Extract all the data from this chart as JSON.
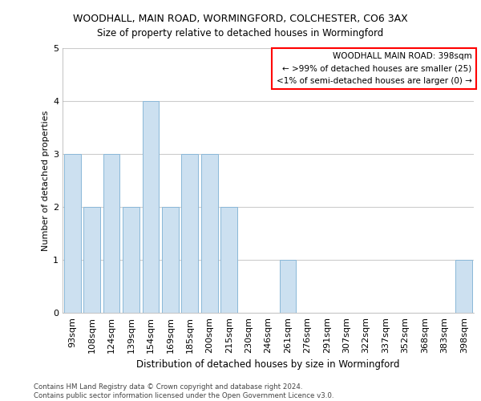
{
  "title1": "WOODHALL, MAIN ROAD, WORMINGFORD, COLCHESTER, CO6 3AX",
  "title2": "Size of property relative to detached houses in Wormingford",
  "xlabel": "Distribution of detached houses by size in Wormingford",
  "ylabel": "Number of detached properties",
  "categories": [
    "93sqm",
    "108sqm",
    "124sqm",
    "139sqm",
    "154sqm",
    "169sqm",
    "185sqm",
    "200sqm",
    "215sqm",
    "230sqm",
    "246sqm",
    "261sqm",
    "276sqm",
    "291sqm",
    "307sqm",
    "322sqm",
    "337sqm",
    "352sqm",
    "368sqm",
    "383sqm",
    "398sqm"
  ],
  "values": [
    3,
    2,
    3,
    2,
    4,
    2,
    3,
    3,
    2,
    0,
    0,
    1,
    0,
    0,
    0,
    0,
    0,
    0,
    0,
    0,
    1
  ],
  "bar_color": "#cce0f0",
  "bar_edge_color": "#8ab8d8",
  "box_text_line1": "WOODHALL MAIN ROAD: 398sqm",
  "box_text_line2": "← >99% of detached houses are smaller (25)",
  "box_text_line3": "<1% of semi-detached houses are larger (0) →",
  "box_color": "white",
  "box_edge_color": "red",
  "ylim": [
    0,
    5
  ],
  "yticks": [
    0,
    1,
    2,
    3,
    4,
    5
  ],
  "footer_line1": "Contains HM Land Registry data © Crown copyright and database right 2024.",
  "footer_line2": "Contains public sector information licensed under the Open Government Licence v3.0.",
  "background_color": "white",
  "grid_color": "#cccccc"
}
